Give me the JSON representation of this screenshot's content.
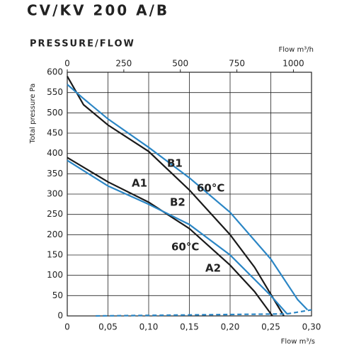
{
  "chart_data": {
    "type": "line",
    "title": "CV/KV 200 A/B",
    "subtitle": "PRESSURE/FLOW",
    "y_label": "Total pressure Pa",
    "x_label": "Flow m³/s",
    "x2_label": "Flow m³/h",
    "xlim": [
      0,
      0.3
    ],
    "xticks": [
      0,
      {
        "value": 0.05,
        "label": "0,05"
      },
      {
        "value": 0.1,
        "label": "0,10"
      },
      {
        "value": 0.15,
        "label": "0,15"
      },
      {
        "value": 0.2,
        "label": "0,20"
      },
      {
        "value": 0.25,
        "label": "0,25"
      },
      {
        "value": 0.3,
        "label": "0,30"
      }
    ],
    "x2lim": [
      0,
      1080
    ],
    "x2ticks": [
      0,
      250,
      500,
      750,
      1000
    ],
    "ylim": [
      0,
      600
    ],
    "yticks": [
      0,
      50,
      100,
      150,
      200,
      250,
      300,
      350,
      400,
      450,
      500,
      550,
      600
    ],
    "grid": true,
    "series": [
      {
        "color": "#1a1a1a",
        "x": [
          0,
          0.02,
          0.05,
          0.1,
          0.15,
          0.2,
          0.23,
          0.266
        ],
        "values": [
          590,
          520,
          470,
          405,
          310,
          200,
          120,
          0
        ]
      },
      {
        "color": "#2b86c5",
        "x": [
          0,
          0.02,
          0.05,
          0.1,
          0.15,
          0.2,
          0.25,
          0.283,
          0.295
        ],
        "values": [
          570,
          535,
          485,
          415,
          340,
          255,
          140,
          40,
          15
        ]
      },
      {
        "color": "#1a1a1a",
        "x": [
          0,
          0.05,
          0.1,
          0.15,
          0.2,
          0.23,
          0.252
        ],
        "values": [
          390,
          330,
          280,
          215,
          125,
          60,
          0
        ]
      },
      {
        "color": "#2b86c5",
        "x": [
          0,
          0.05,
          0.1,
          0.15,
          0.2,
          0.25,
          0.27
        ],
        "values": [
          383,
          320,
          275,
          225,
          150,
          50,
          5
        ]
      },
      {
        "color": "#2b86c5",
        "dashed": true,
        "x": [
          0.035,
          0.27,
          0.3
        ],
        "values": [
          0,
          5,
          15
        ]
      }
    ],
    "annotations": [
      "B1",
      "60°C",
      "A1",
      "B2",
      "60°C",
      "A2"
    ]
  }
}
